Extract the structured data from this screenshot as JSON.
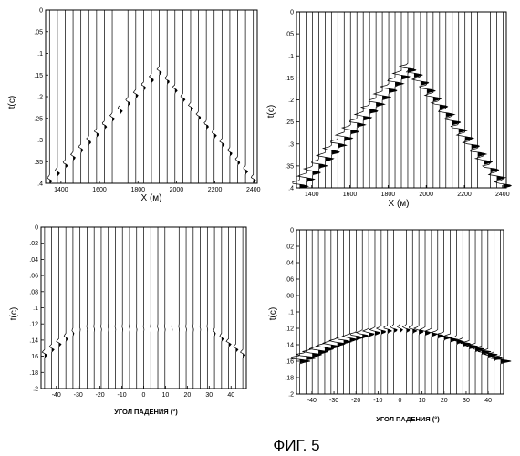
{
  "figure_caption": "ФИГ. 5",
  "chart_data": [
    {
      "type": "wiggle-trace",
      "panel": "top-left",
      "xlabel": "X (м)",
      "ylabel": "t(c)",
      "xlim": [
        1320,
        2420
      ],
      "ylim": [
        0,
        0.4
      ],
      "y_inverted": true,
      "xticks": [
        1400,
        1600,
        1800,
        2000,
        2200,
        2400
      ],
      "yticks": [
        0,
        0.05,
        0.1,
        0.15,
        0.2,
        0.25,
        0.3,
        0.35,
        0.4
      ],
      "trace_count": 27,
      "amplitude": 0.12,
      "event": {
        "shape": "apex",
        "apex_x": 1910,
        "apex_t": 0.14,
        "edge_t": 0.4,
        "edge_x": [
          1320,
          2420
        ]
      },
      "grid": false
    },
    {
      "type": "wiggle-trace",
      "panel": "top-right",
      "xlabel": "X (м)",
      "ylabel": "t(c)",
      "xlim": [
        1320,
        2420
      ],
      "ylim": [
        0,
        0.4
      ],
      "y_inverted": true,
      "xticks": [
        1400,
        1600,
        1800,
        2000,
        2200,
        2400
      ],
      "yticks": [
        0,
        0.05,
        0.1,
        0.15,
        0.2,
        0.25,
        0.3,
        0.35,
        0.4
      ],
      "trace_count": 33,
      "amplitude": 0.55,
      "event": {
        "shape": "apex",
        "apex_x": 1910,
        "apex_t": 0.125,
        "edge_t": 0.4,
        "edge_x": [
          1320,
          2420
        ]
      },
      "grid": false
    },
    {
      "type": "wiggle-trace",
      "panel": "bottom-left",
      "xlabel": "УГОЛ ПАДЕНИЯ (°)",
      "ylabel": "t(c)",
      "xlim": [
        -47,
        47
      ],
      "ylim": [
        0,
        0.2
      ],
      "y_inverted": true,
      "xticks": [
        -40,
        -30,
        -20,
        -10,
        0,
        10,
        20,
        30,
        40
      ],
      "yticks": [
        0,
        0.02,
        0.04,
        0.06,
        0.08,
        0.1,
        0.12,
        0.14,
        0.16,
        0.18,
        0.2
      ],
      "trace_count": 29,
      "amplitude": 0.14,
      "event": {
        "shape": "flanks",
        "center_t": 0.125,
        "edge_t": 0.16,
        "inner_x": 30
      },
      "grid": false
    },
    {
      "type": "wiggle-trace",
      "panel": "bottom-right",
      "xlabel": "УГОЛ ПАДЕНИЯ (°)",
      "ylabel": "t(c)",
      "xlim": [
        -47,
        47
      ],
      "ylim": [
        0,
        0.2
      ],
      "y_inverted": true,
      "xticks": [
        -40,
        -30,
        -20,
        -10,
        0,
        10,
        20,
        30,
        40
      ],
      "yticks": [
        0,
        0.02,
        0.04,
        0.06,
        0.08,
        0.1,
        0.12,
        0.14,
        0.16,
        0.18,
        0.2
      ],
      "trace_count": 33,
      "amplitude": 0.7,
      "event": {
        "shape": "arch",
        "center_t": 0.12,
        "edge_t": 0.16
      },
      "grid": false
    }
  ]
}
